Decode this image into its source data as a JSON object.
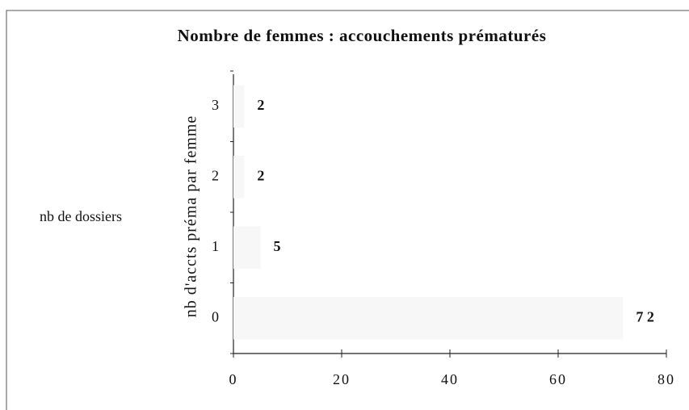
{
  "chart_data": {
    "type": "hbar",
    "title": "Nombre de femmes : accouchements prématurés",
    "y_label": "nb d'accts préma par femme",
    "categories": [
      "0",
      "1",
      "2",
      "3"
    ],
    "series": [
      {
        "name": "nb de dossiers",
        "color": "#f7f7f7",
        "values": [
          72,
          5,
          2,
          2
        ],
        "value_labels": [
          "7 2",
          "5",
          "2",
          "2"
        ]
      }
    ],
    "xlim": [
      0,
      80
    ],
    "xticks": [
      0,
      20,
      40,
      60,
      80
    ],
    "legend": "left"
  }
}
